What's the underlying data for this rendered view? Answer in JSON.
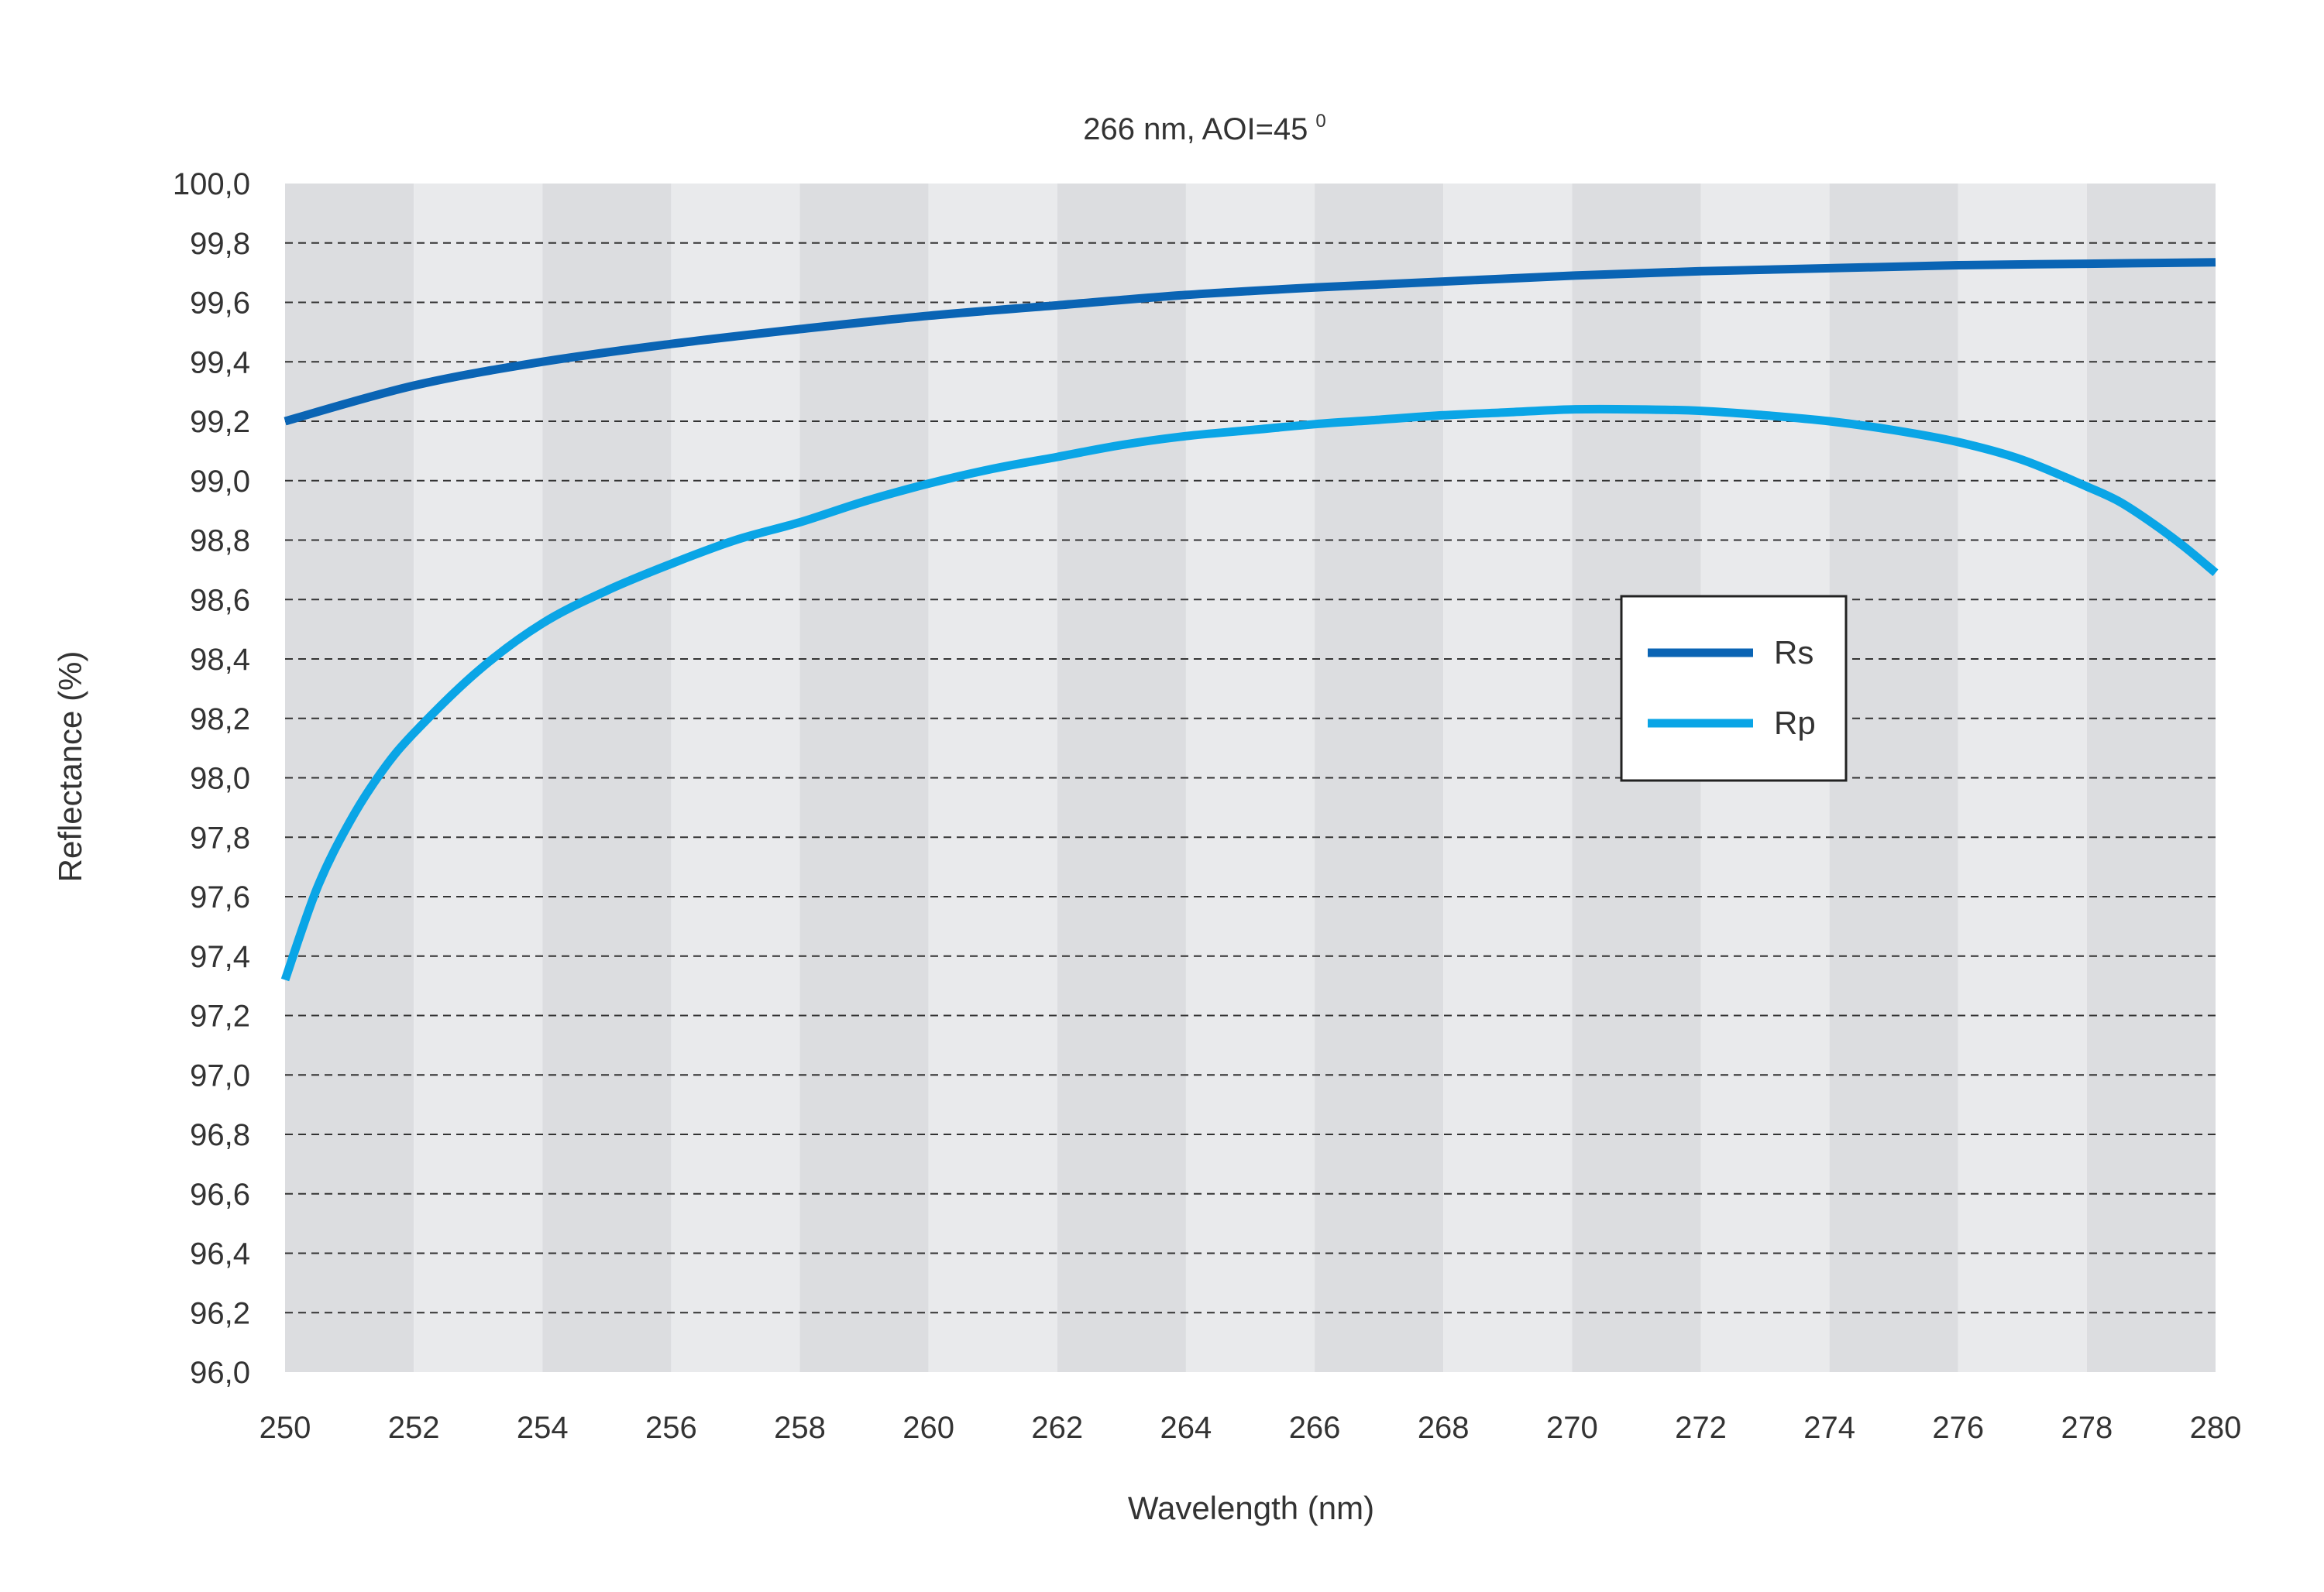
{
  "chart_data": {
    "type": "line",
    "title": "266 nm, AOI=45",
    "title_superscript": "0",
    "xlabel": "Wavelength (nm)",
    "ylabel": "Reflectance (%)",
    "xlim": [
      250,
      280
    ],
    "ylim": [
      96.0,
      100.0
    ],
    "x_ticks": [
      "250",
      "252",
      "254",
      "256",
      "258",
      "260",
      "262",
      "264",
      "266",
      "268",
      "270",
      "272",
      "274",
      "276",
      "278",
      "280"
    ],
    "y_ticks": [
      "96,0",
      "96,2",
      "96,4",
      "96,6",
      "96,8",
      "97,0",
      "97,2",
      "97,4",
      "97,6",
      "97,8",
      "98,0",
      "98,2",
      "98,4",
      "98,6",
      "98,8",
      "99,0",
      "99,2",
      "99,4",
      "99,6",
      "99,8",
      "100,0"
    ],
    "grid": "horizontal dashed",
    "background": "alternating vertical bands",
    "legend_position": "center-right",
    "series": [
      {
        "name": "Rs",
        "color": "#0a64b4",
        "x": [
          250,
          252,
          254,
          256,
          258,
          260,
          262,
          264,
          266,
          268,
          270,
          272,
          274,
          276,
          278,
          280
        ],
        "y": [
          99.2,
          99.32,
          99.4,
          99.46,
          99.51,
          99.555,
          99.59,
          99.625,
          99.65,
          99.67,
          99.69,
          99.705,
          99.715,
          99.725,
          99.73,
          99.735
        ]
      },
      {
        "name": "Rp",
        "color": "#0aa5e6",
        "x": [
          250,
          250.5,
          251,
          251.5,
          252,
          253,
          254,
          255,
          256,
          257,
          258,
          259,
          260,
          261,
          262,
          263,
          264,
          265,
          266,
          267,
          268,
          269,
          270,
          271,
          272,
          273,
          274,
          275,
          276,
          277,
          278,
          278.5,
          279,
          279.5,
          280
        ],
        "y": [
          97.32,
          97.63,
          97.85,
          98.02,
          98.15,
          98.36,
          98.52,
          98.63,
          98.72,
          98.8,
          98.86,
          98.93,
          98.99,
          99.04,
          99.08,
          99.12,
          99.15,
          99.17,
          99.19,
          99.205,
          99.22,
          99.23,
          99.24,
          99.24,
          99.235,
          99.22,
          99.2,
          99.17,
          99.13,
          99.07,
          98.98,
          98.93,
          98.86,
          98.78,
          98.69
        ]
      }
    ]
  }
}
